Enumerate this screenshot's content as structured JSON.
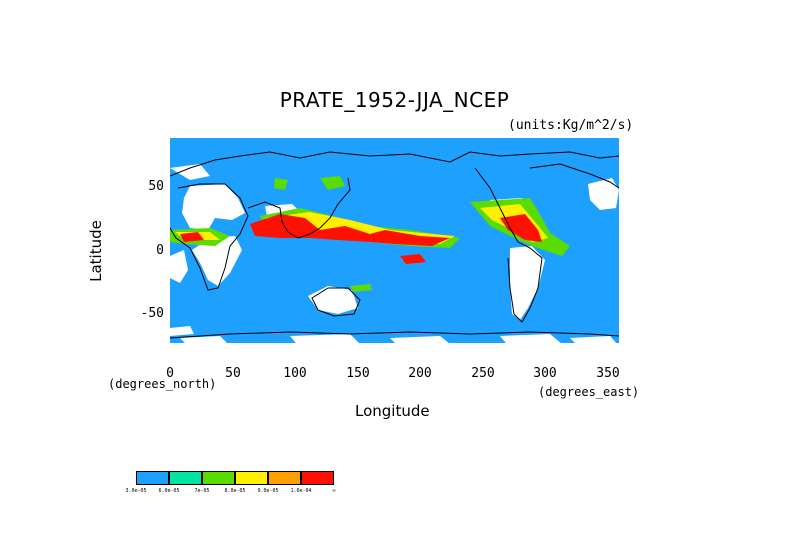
{
  "title": "PRATE_1952-JJA_NCEP",
  "units": "(units:Kg/m^2/s)",
  "axes": {
    "xlabel": "Longitude",
    "ylabel": "Latitude",
    "x_ticks": [
      "0",
      "50",
      "100",
      "150",
      "200",
      "250",
      "300",
      "350"
    ],
    "y_ticks": [
      "50",
      "0",
      "-50"
    ],
    "x_unit_note": "(degrees_east)",
    "y_unit_note": "(degrees_north)"
  },
  "legend": {
    "labels": [
      "3.0e-05",
      "6.0e-05",
      "7e-05",
      "8.0e-05",
      "9.0e-05",
      "1.0e-04",
      "∞"
    ],
    "colors": [
      "#1ea0ff",
      "#00e6a0",
      "#5adc00",
      "#fff000",
      "#ffa000",
      "#ff1000"
    ]
  },
  "colors": {
    "ocean_base": "#1ea0ff",
    "land_dry": "#ffffff",
    "coast": "#000000"
  }
}
